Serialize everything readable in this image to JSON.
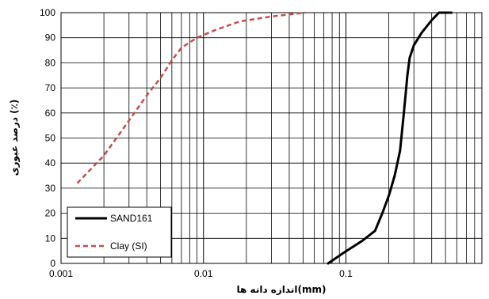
{
  "chart_data": {
    "type": "line",
    "title": "",
    "xlabel": "اندازه دانه ها(mm)",
    "ylabel": "درصد عبوری (٪)",
    "x_scale": "log",
    "xlim": [
      0.001,
      0.9
    ],
    "ylim": [
      0,
      100
    ],
    "x_tick_labels": [
      "0.001",
      "0.01",
      "0.1"
    ],
    "x_tick_values": [
      0.001,
      0.01,
      0.1
    ],
    "y_ticks": [
      0,
      10,
      20,
      30,
      40,
      50,
      60,
      70,
      80,
      90,
      100
    ],
    "grid": true,
    "legend_position": "bottom-left",
    "series": [
      {
        "name": "SAND161",
        "color": "#000000",
        "style": "solid",
        "points": [
          [
            0.075,
            0
          ],
          [
            0.095,
            4
          ],
          [
            0.13,
            9
          ],
          [
            0.16,
            13
          ],
          [
            0.18,
            20
          ],
          [
            0.2,
            27
          ],
          [
            0.22,
            35
          ],
          [
            0.24,
            45
          ],
          [
            0.25,
            55
          ],
          [
            0.26,
            65
          ],
          [
            0.27,
            75
          ],
          [
            0.28,
            82
          ],
          [
            0.3,
            87
          ],
          [
            0.34,
            92
          ],
          [
            0.4,
            97
          ],
          [
            0.45,
            100
          ],
          [
            0.55,
            100
          ]
        ]
      },
      {
        "name": "Clay (SI)",
        "color": "#c0504d",
        "style": "dashed",
        "points": [
          [
            0.0013,
            32
          ],
          [
            0.002,
            43
          ],
          [
            0.003,
            57
          ],
          [
            0.004,
            67
          ],
          [
            0.005,
            74
          ],
          [
            0.006,
            81
          ],
          [
            0.007,
            86
          ],
          [
            0.009,
            90
          ],
          [
            0.012,
            93
          ],
          [
            0.018,
            96.5
          ],
          [
            0.03,
            98.5
          ],
          [
            0.052,
            100
          ]
        ]
      }
    ]
  }
}
